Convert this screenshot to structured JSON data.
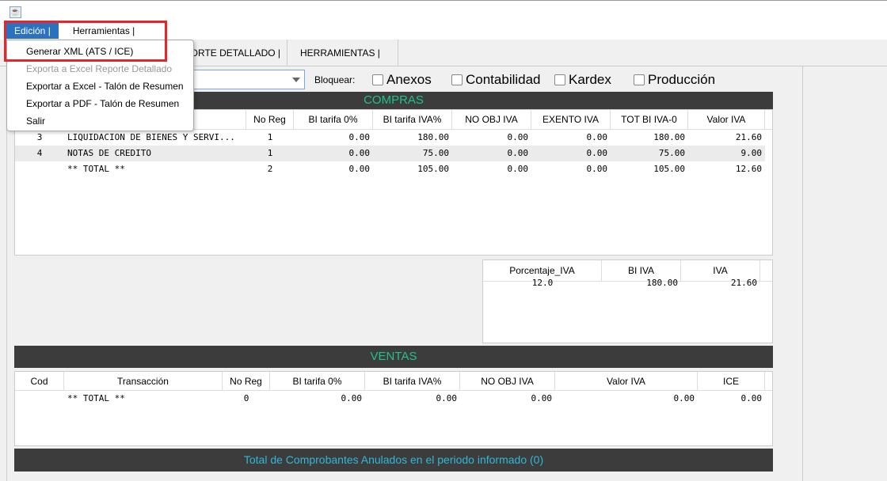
{
  "menubar": {
    "items": [
      "Edición  |",
      "Herramientas  |"
    ]
  },
  "tabs": [
    {
      "label": "REPORTE DETALLADO   |"
    },
    {
      "label": "HERRAMIENTAS   |"
    }
  ],
  "filter": {
    "combo_value": "",
    "bloquear_label": "Bloquear:",
    "checks": [
      {
        "label": "Anexos",
        "checked": false
      },
      {
        "label": "Contabilidad",
        "checked": false
      },
      {
        "label": "Kardex",
        "checked": false
      },
      {
        "label": "Producción",
        "checked": false
      }
    ]
  },
  "colors": {
    "accent_green": "#1fc28a",
    "bar_bg": "#3c3c3c",
    "footer_text": "#2fb8d8",
    "menu_highlight": "#2a72c0",
    "annotation_red": "#e8262a"
  },
  "compras": {
    "title": "COMPRAS",
    "headers": [
      "",
      "",
      "No Reg",
      "BI tarifa 0%",
      "BI tarifa IVA%",
      "NO OBJ IVA",
      "EXENTO IVA",
      "TOT BI IVA-0",
      "Valor IVA"
    ],
    "rows": [
      [
        "3",
        "LIQUIDACION DE BIENES Y SERVI...",
        "1",
        "0.00",
        "180.00",
        "0.00",
        "0.00",
        "180.00",
        "21.60"
      ],
      [
        "4",
        "NOTAS DE CREDITO",
        "1",
        "0.00",
        "75.00",
        "0.00",
        "0.00",
        "75.00",
        "9.00"
      ],
      [
        "",
        "** TOTAL **",
        "2",
        "0.00",
        "105.00",
        "0.00",
        "0.00",
        "105.00",
        "12.60"
      ]
    ]
  },
  "iva": {
    "headers": [
      "Porcentaje_IVA",
      "BI IVA",
      "IVA"
    ],
    "rows": [
      [
        "12.0",
        "180.00",
        "21.60"
      ]
    ]
  },
  "ventas": {
    "title": "VENTAS",
    "headers": [
      "Cod",
      "Transacción",
      "No Reg",
      "BI tarifa 0%",
      "BI tarifa IVA%",
      "NO OBJ IVA",
      "Valor IVA",
      "ICE"
    ],
    "rows": [
      [
        "",
        "** TOTAL **",
        "0",
        "0.00",
        "0.00",
        "0.00",
        "0.00",
        "0.00"
      ]
    ]
  },
  "footer": {
    "text": "Total de Comprobantes Anulados en el periodo informado  (0)"
  },
  "popup": {
    "items": [
      {
        "label": "Generar XML (ATS / ICE)",
        "enabled": true
      },
      {
        "label": "Exporta a Excel Reporte Detallado",
        "enabled": false
      },
      {
        "label": "Exportar a Excel - Talón de Resumen",
        "enabled": true
      },
      {
        "label": "Exportar a PDF - Talón de Resumen",
        "enabled": true
      },
      {
        "label": "Salir",
        "enabled": true
      }
    ]
  }
}
